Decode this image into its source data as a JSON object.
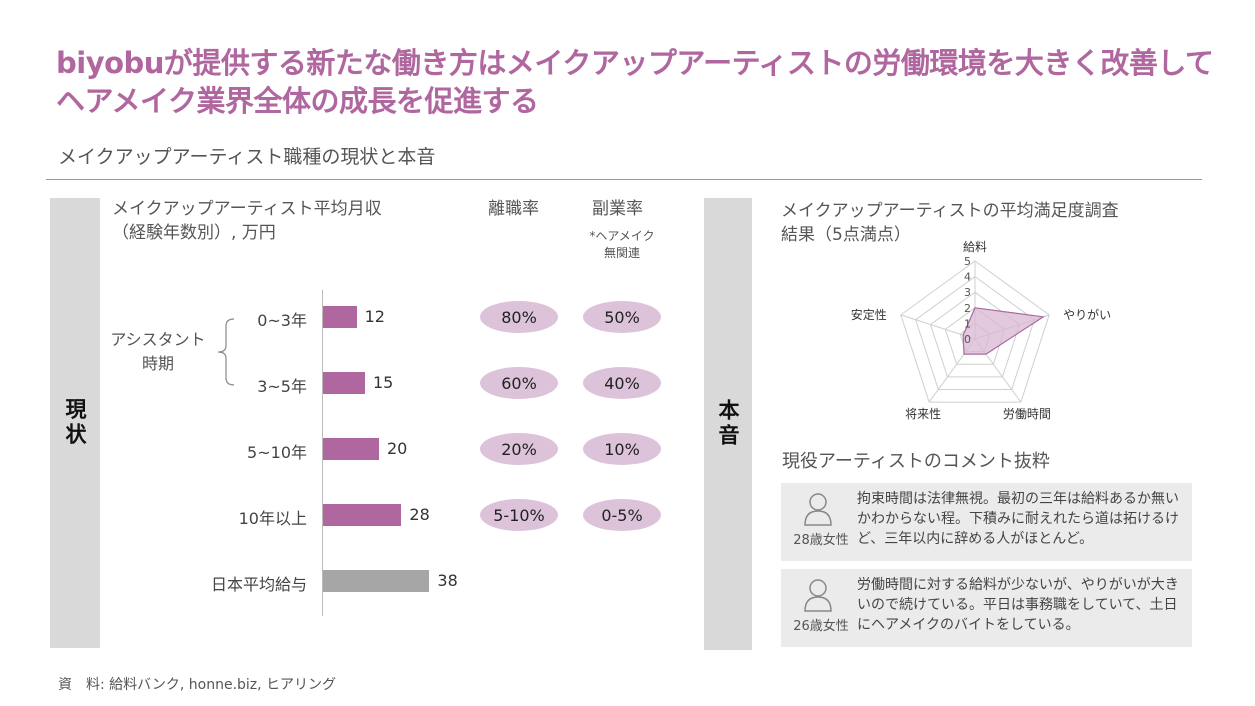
{
  "title": "biyobuが提供する新たな働き方はメイクアップアーティストの労働環境を大きく改善してヘアメイク業界全体の成長を促進する",
  "subtitle": "メイクアップアーティスト職種の現状と本音",
  "left_panel": {
    "side_label": "現状",
    "income_header": "メイクアップアーティスト平均月収\n（経験年数別）, 万円",
    "turnover_header": "離職率",
    "sidejob_header": "副業率",
    "sidejob_note": "*ヘアメイク\n無関連",
    "assistant_label": "アシスタント\n時期"
  },
  "right_panel": {
    "side_label": "本音",
    "survey_header": "メイクアップアーティストの平均満足度調査\n結果（5点満点）",
    "comments_header": "現役アーティストのコメント抜粋",
    "comments": [
      {
        "who": "28歳女性",
        "text": "拘束時間は法律無視。最初の三年は給料あるか無いかわからない程。下積みに耐えれたら道は拓けるけど、三年以内に辞める人がほとんど。"
      },
      {
        "who": "26歳女性",
        "text": "労働時間に対する給料が少ないが、やりがいが大きいので続けている。平日は事務職をしていて、土日にヘアメイクのバイトをしている。"
      }
    ]
  },
  "source": "資　料: 給料バンク, honne.biz, ヒアリング",
  "colors": {
    "accent": "#b0669e",
    "bar": "#b0669e",
    "bar_avg": "#a6a6a6",
    "pill": "#dcc3da",
    "radar_fill": "#d9b7d3",
    "radar_line": "#a96a9e"
  },
  "chart_data": [
    {
      "type": "bar",
      "orientation": "horizontal",
      "title": "メイクアップアーティスト平均月収（経験年数別）, 万円",
      "categories": [
        "0~3年",
        "3~5年",
        "5~10年",
        "10年以上",
        "日本平均給与"
      ],
      "values": [
        12,
        15,
        20,
        28,
        38
      ],
      "turnover_rate": [
        "80%",
        "60%",
        "20%",
        "5-10%",
        ""
      ],
      "sidejob_rate": [
        "50%",
        "40%",
        "10%",
        "0-5%",
        ""
      ]
    },
    {
      "type": "radar",
      "title": "メイクアップアーティストの平均満足度調査結果（5点満点）",
      "axes": [
        "給料",
        "やりがい",
        "労働時間",
        "将来性",
        "安定性"
      ],
      "values": [
        2.0,
        4.6,
        1.2,
        1.2,
        0.8
      ],
      "rlim": [
        0,
        5
      ],
      "ticks": [
        "0",
        "1",
        "2",
        "3",
        "4",
        "5"
      ]
    }
  ]
}
